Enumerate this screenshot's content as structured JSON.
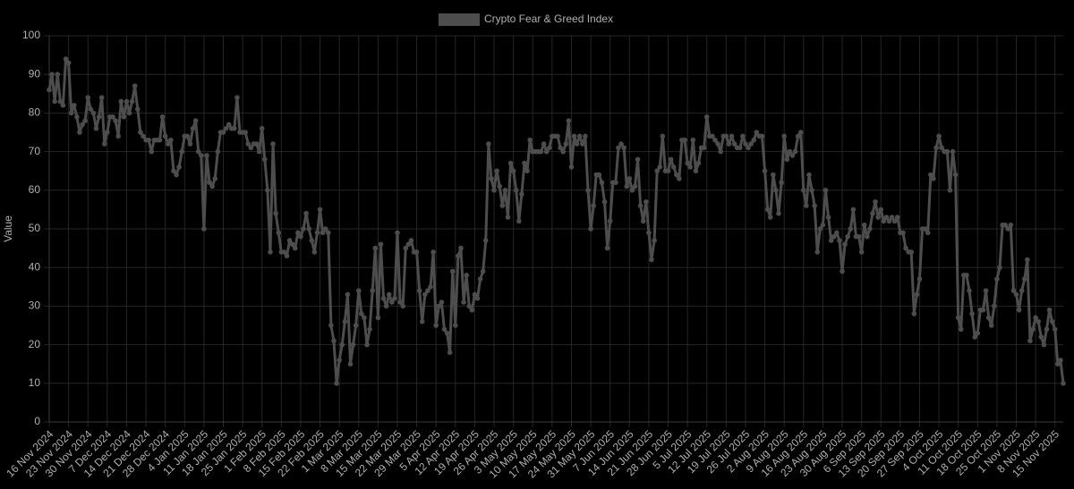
{
  "chart_data": {
    "type": "line",
    "ylabel": "Value",
    "ylim": [
      0,
      100
    ],
    "yticks": [
      0,
      10,
      20,
      30,
      40,
      50,
      60,
      70,
      80,
      90,
      100
    ],
    "grid": true,
    "legend": "top",
    "categories": [
      "16 Nov 2024",
      null,
      null,
      null,
      null,
      null,
      null,
      "23 Nov 2024",
      null,
      null,
      null,
      null,
      null,
      null,
      "30 Nov 2024",
      null,
      null,
      null,
      null,
      null,
      null,
      "7 Dec 2024",
      null,
      null,
      null,
      null,
      null,
      null,
      "14 Dec 2024",
      null,
      null,
      null,
      null,
      null,
      null,
      "21 Dec 2024",
      null,
      null,
      null,
      null,
      null,
      null,
      "28 Dec 2024",
      null,
      null,
      null,
      null,
      null,
      null,
      "4 Jan 2025",
      null,
      null,
      null,
      null,
      null,
      null,
      "11 Jan 2025",
      null,
      null,
      null,
      null,
      null,
      null,
      "18 Jan 2025",
      null,
      null,
      null,
      null,
      null,
      null,
      "25 Jan 2025",
      null,
      null,
      null,
      null,
      null,
      null,
      "1 Feb 2025",
      null,
      null,
      null,
      null,
      null,
      null,
      "8 Feb 2025",
      null,
      null,
      null,
      null,
      null,
      null,
      "15 Feb 2025",
      null,
      null,
      null,
      null,
      null,
      null,
      "22 Feb 2025",
      null,
      null,
      null,
      null,
      null,
      null,
      "1 Mar 2025",
      null,
      null,
      null,
      null,
      null,
      null,
      "8 Mar 2025",
      null,
      null,
      null,
      null,
      null,
      null,
      "15 Mar 2025",
      null,
      null,
      null,
      null,
      null,
      null,
      "22 Mar 2025",
      null,
      null,
      null,
      null,
      null,
      null,
      "29 Mar 2025",
      null,
      null,
      null,
      null,
      null,
      null,
      "5 Apr 2025",
      null,
      null,
      null,
      null,
      null,
      null,
      "12 Apr 2025",
      null,
      null,
      null,
      null,
      null,
      null,
      "19 Apr 2025",
      null,
      null,
      null,
      null,
      null,
      null,
      "26 Apr 2025",
      null,
      null,
      null,
      null,
      null,
      null,
      "3 May 2025",
      null,
      null,
      null,
      null,
      null,
      null,
      "10 May 2025",
      null,
      null,
      null,
      null,
      null,
      null,
      "17 May 2025",
      null,
      null,
      null,
      null,
      null,
      null,
      "24 May 2025",
      null,
      null,
      null,
      null,
      null,
      null,
      "31 May 2025",
      null,
      null,
      null,
      null,
      null,
      null,
      "7 Jun 2025",
      null,
      null,
      null,
      null,
      null,
      null,
      "14 Jun 2025",
      null,
      null,
      null,
      null,
      null,
      null,
      "21 Jun 2025",
      null,
      null,
      null,
      null,
      null,
      null,
      "28 Jun 2025",
      null,
      null,
      null,
      null,
      null,
      null,
      "5 Jul 2025",
      null,
      null,
      null,
      null,
      null,
      null,
      "12 Jul 2025",
      null,
      null,
      null,
      null,
      null,
      null,
      "19 Jul 2025",
      null,
      null,
      null,
      null,
      null,
      null,
      "26 Jul 2025",
      null,
      null,
      null,
      null,
      null,
      null,
      "2 Aug 2025",
      null,
      null,
      null,
      null,
      null,
      null,
      "9 Aug 2025",
      null,
      null,
      null,
      null,
      null,
      null,
      "16 Aug 2025",
      null,
      null,
      null,
      null,
      null,
      null,
      "23 Aug 2025",
      null,
      null,
      null,
      null,
      null,
      null,
      "30 Aug 2025",
      null,
      null,
      null,
      null,
      null,
      null,
      "6 Sep 2025",
      null,
      null,
      null,
      null,
      null,
      null,
      "13 Sep 2025",
      null,
      null,
      null,
      null,
      null,
      null,
      "20 Sep 2025",
      null,
      null,
      null,
      null,
      null,
      null,
      "27 Sep 2025",
      null,
      null,
      null,
      null,
      null,
      null,
      "4 Oct 2025",
      null,
      null,
      null,
      null,
      null,
      null,
      "11 Oct 2025",
      null,
      null,
      null,
      null,
      null,
      null,
      "18 Oct 2025",
      null,
      null,
      null,
      null,
      null,
      null,
      "25 Oct 2025",
      null,
      null,
      null,
      null,
      null,
      null,
      "1 Nov 2025",
      null,
      null,
      null,
      null,
      null,
      null,
      "8 Nov 2025",
      null,
      null,
      null,
      null,
      null,
      null,
      "15 Nov 2025",
      null,
      null,
      null
    ],
    "series": [
      {
        "name": "Crypto Fear & Greed Index",
        "color": "#4d4d4d",
        "values": [
          86,
          90,
          83,
          90,
          83,
          82,
          94,
          93,
          80,
          82,
          79,
          75,
          77,
          78,
          84,
          81,
          80,
          76,
          79,
          84,
          72,
          75,
          79,
          79,
          78,
          74,
          83,
          79,
          83,
          80,
          83,
          87,
          81,
          75,
          74,
          73,
          73,
          70,
          73,
          73,
          73,
          79,
          74,
          72,
          73,
          65,
          64,
          66,
          70,
          74,
          74,
          72,
          76,
          78,
          70,
          69,
          50,
          69,
          62,
          61,
          63,
          70,
          75,
          75,
          76,
          77,
          76,
          76,
          84,
          75,
          75,
          75,
          72,
          71,
          72,
          72,
          70,
          76,
          68,
          60,
          44,
          72,
          54,
          49,
          44,
          44,
          43,
          47,
          46,
          45,
          49,
          48,
          50,
          54,
          50,
          47,
          44,
          49,
          55,
          49,
          50,
          49,
          25,
          21,
          10,
          16,
          20,
          26,
          33,
          15,
          20,
          25,
          34,
          28,
          27,
          20,
          24,
          34,
          45,
          27,
          46,
          32,
          30,
          33,
          31,
          32,
          49,
          31,
          30,
          45,
          46,
          47,
          44,
          44,
          34,
          26,
          33,
          34,
          35,
          44,
          25,
          30,
          31,
          24,
          23,
          18,
          39,
          25,
          43,
          45,
          31,
          38,
          30,
          29,
          33,
          32,
          37,
          39,
          47,
          72,
          63,
          60,
          65,
          61,
          56,
          60,
          53,
          67,
          65,
          60,
          52,
          59,
          67,
          65,
          73,
          70,
          70,
          70,
          70,
          72,
          70,
          71,
          74,
          74,
          74,
          71,
          70,
          72,
          78,
          66,
          74,
          72,
          74,
          72,
          74,
          60,
          50,
          56,
          64,
          64,
          62,
          57,
          45,
          52,
          62,
          62,
          71,
          72,
          71,
          61,
          63,
          60,
          61,
          68,
          56,
          52,
          57,
          49,
          42,
          47,
          65,
          66,
          74,
          65,
          65,
          68,
          66,
          64,
          63,
          73,
          73,
          67,
          66,
          73,
          65,
          67,
          71,
          71,
          79,
          74,
          74,
          73,
          72,
          70,
          74,
          74,
          72,
          74,
          72,
          71,
          71,
          74,
          72,
          71,
          72,
          73,
          75,
          74,
          74,
          65,
          55,
          53,
          64,
          60,
          54,
          62,
          74,
          68,
          70,
          69,
          70,
          74,
          75,
          60,
          56,
          64,
          60,
          56,
          44,
          50,
          51,
          60,
          53,
          47,
          48,
          49,
          47,
          39,
          46,
          48,
          50,
          55,
          48,
          48,
          44,
          51,
          48,
          50,
          54,
          57,
          53,
          55,
          52,
          53,
          52,
          53,
          52,
          53,
          49,
          49,
          45,
          44,
          44,
          28,
          33,
          37,
          50,
          50,
          49,
          64,
          63,
          71,
          74,
          71,
          70,
          70,
          60,
          70,
          64,
          27,
          24,
          38,
          38,
          34,
          28,
          22,
          23,
          29,
          29,
          34,
          27,
          25,
          30,
          37,
          40,
          51,
          51,
          50,
          51,
          34,
          33,
          29,
          34,
          37,
          42,
          21,
          24,
          27,
          26,
          22,
          20,
          24,
          29,
          26,
          24,
          15,
          16,
          10
        ]
      }
    ]
  }
}
